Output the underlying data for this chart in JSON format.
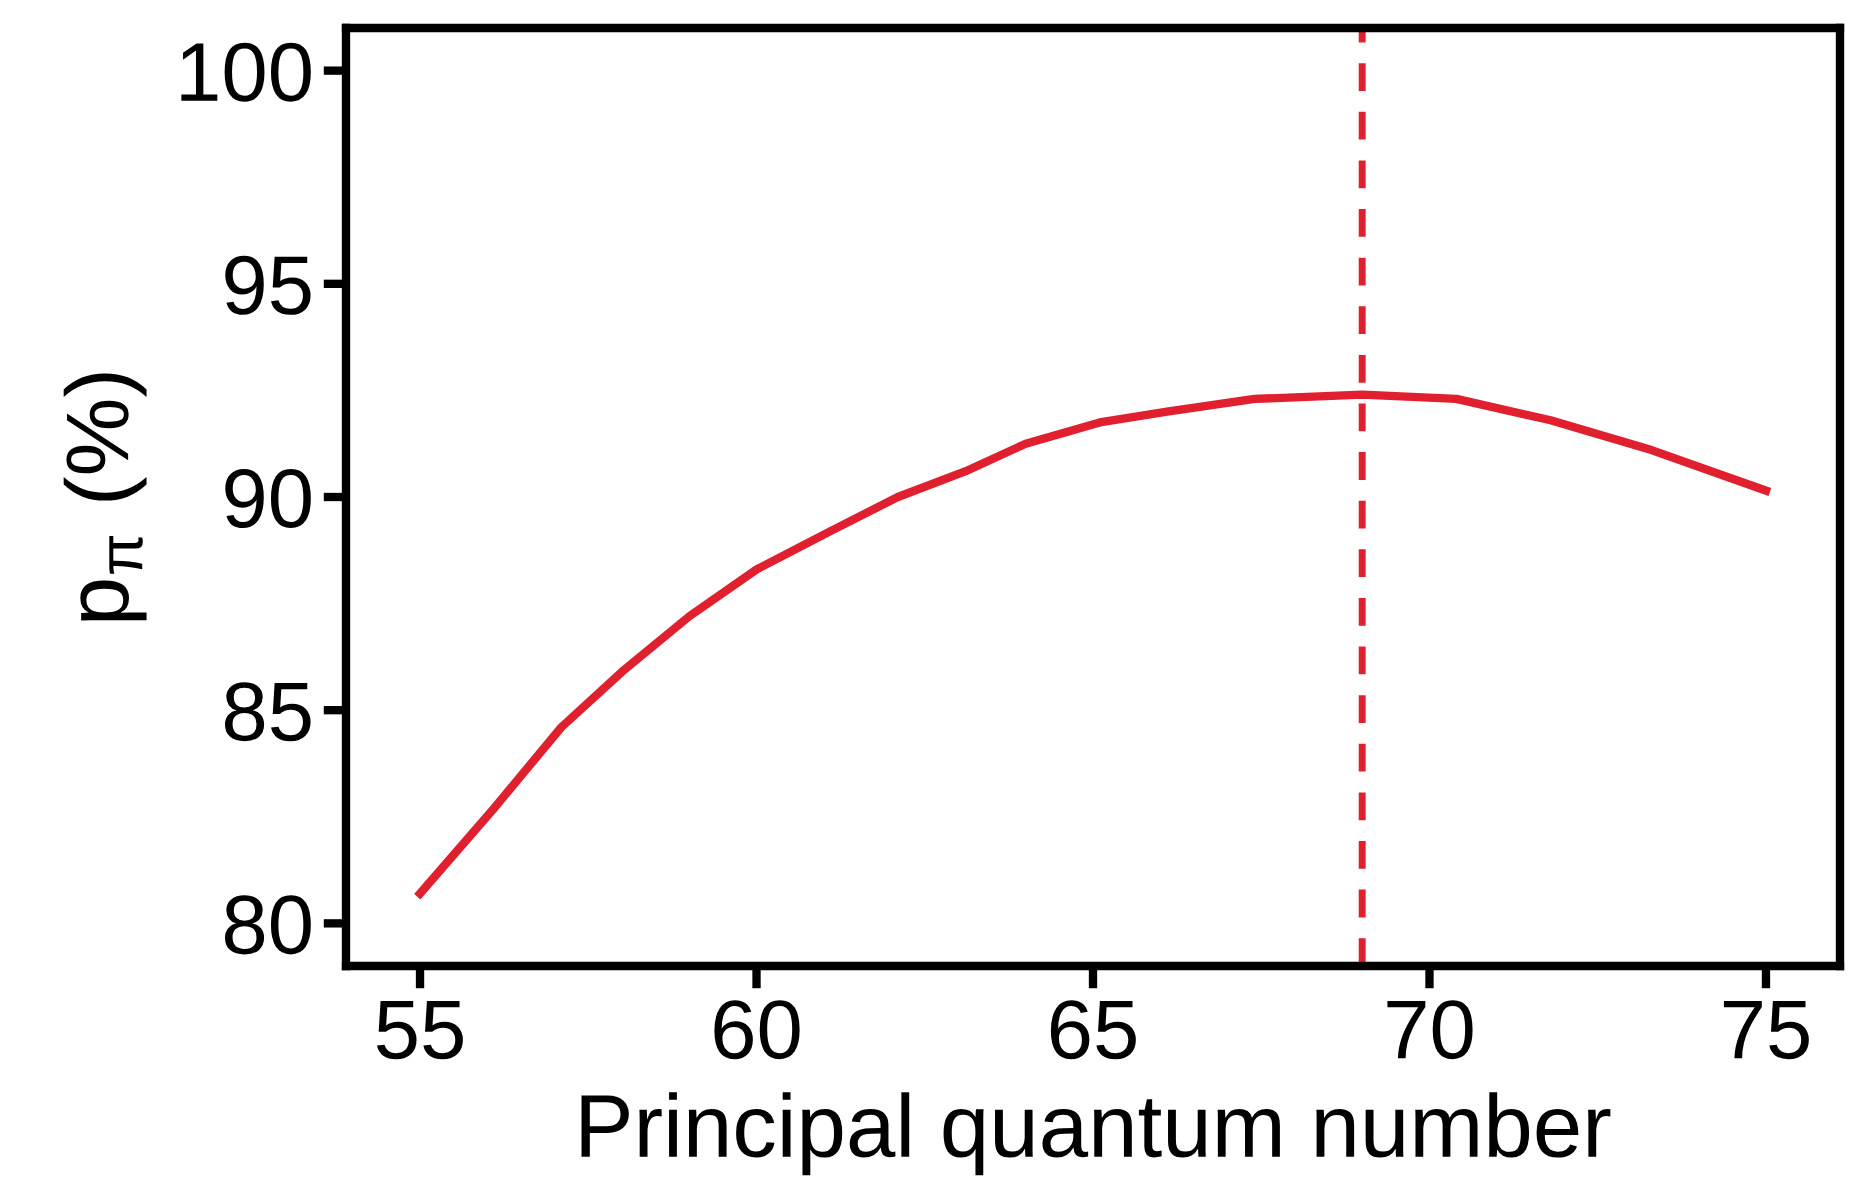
{
  "chart_data": {
    "type": "line",
    "xlabel": "Principal quantum number",
    "ylabel": "p$_{π}$ (%)",
    "xlim": [
      53.9,
      76.1
    ],
    "ylim": [
      79,
      101
    ],
    "xticks": [
      55,
      60,
      65,
      70,
      75
    ],
    "yticks": [
      80,
      85,
      90,
      95,
      100
    ],
    "grid": false,
    "legend": false,
    "series": [
      {
        "color": "#e0202e",
        "x": [
          55,
          56.1,
          57.1,
          58.0,
          59.0,
          60.0,
          61.1,
          62.1,
          63.1,
          64.0,
          65.1,
          66.1,
          67.4,
          69.0,
          70.4,
          71.8,
          73.3,
          75.0
        ],
        "values": [
          80.7,
          82.7,
          84.6,
          85.9,
          87.2,
          88.3,
          89.2,
          90.0,
          90.6,
          91.25,
          91.75,
          92.0,
          92.3,
          92.4,
          92.3,
          91.8,
          91.1,
          90.15
        ]
      }
    ],
    "ref_lines": [
      {
        "axis": "x",
        "value": 69,
        "color": "#e0202e",
        "line_style": "dashed"
      }
    ]
  }
}
